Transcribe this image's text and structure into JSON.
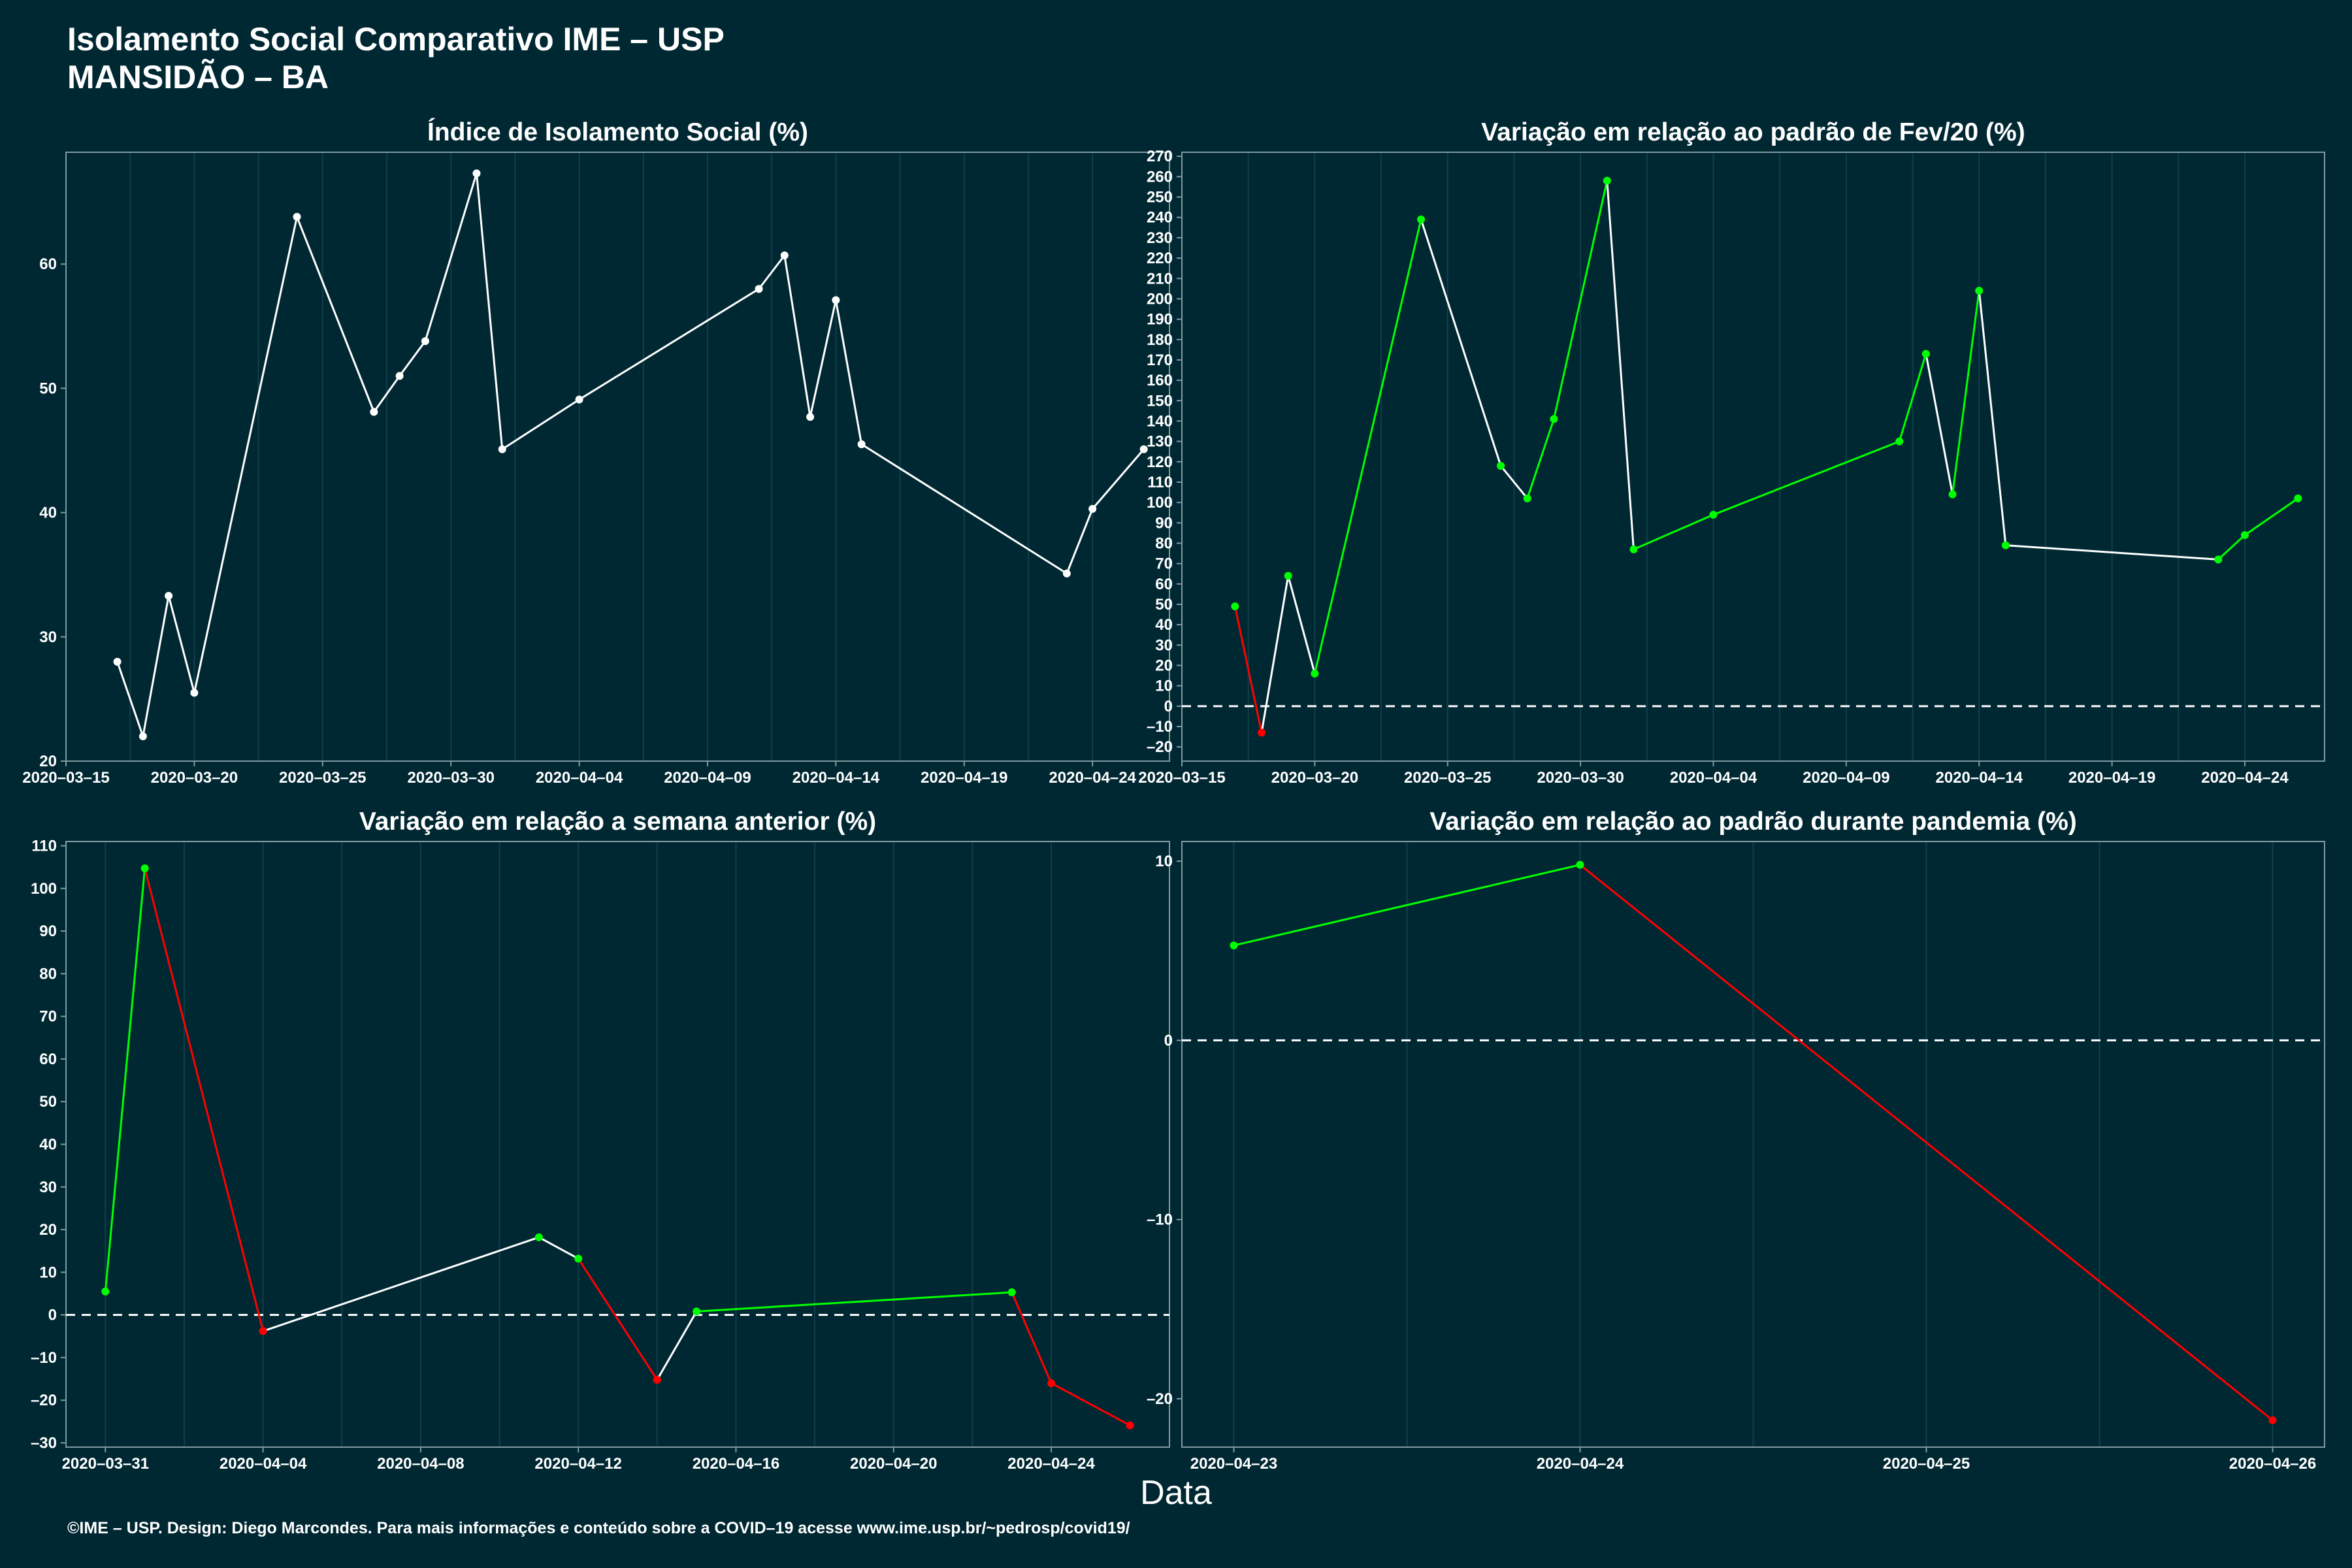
{
  "title": "Isolamento Social Comparativo IME – USP",
  "subtitle": "MANSIDÃO – BA",
  "xlabel": "Data",
  "caption": "©IME – USP. Design: Diego Marcondes. Para mais informações e conteúdo sobre a COVID–19 acesse www.ime.usp.br/~pedrosp/covid19/",
  "colors": {
    "background": "#002833",
    "line": "#ffffff",
    "increase": "#00ff00",
    "decrease": "#ff0000",
    "grid": "#0f3f4a",
    "zero_line": "#ffffff"
  },
  "chart_data": [
    {
      "type": "line",
      "title": "Índice de Isolamento Social (%)",
      "x_ticks": [
        "2020–03–15",
        "2020–03–20",
        "2020–03–25",
        "2020–03–30",
        "2020–04–04",
        "2020–04–09",
        "2020–04–14",
        "2020–04–19",
        "2020–04–24"
      ],
      "xlim": [
        "2020-03-15",
        "2020-04-27"
      ],
      "ylim": [
        20,
        69
      ],
      "y_ticks": [
        20,
        30,
        40,
        50,
        60
      ],
      "zero_line": false,
      "colored_segments": false,
      "points": [
        [
          "2020-03-17",
          28.0
        ],
        [
          "2020-03-18",
          22.0
        ],
        [
          "2020-03-19",
          33.3
        ],
        [
          "2020-03-20",
          25.5
        ],
        [
          "2020-03-24",
          63.8
        ],
        [
          "2020-03-27",
          48.1
        ],
        [
          "2020-03-28",
          51.0
        ],
        [
          "2020-03-29",
          53.8
        ],
        [
          "2020-03-31",
          67.3
        ],
        [
          "2020-04-01",
          45.1
        ],
        [
          "2020-04-04",
          49.1
        ],
        [
          "2020-04-11",
          58.0
        ],
        [
          "2020-04-12",
          60.7
        ],
        [
          "2020-04-13",
          47.7
        ],
        [
          "2020-04-14",
          57.1
        ],
        [
          "2020-04-15",
          45.5
        ],
        [
          "2020-04-23",
          35.1
        ],
        [
          "2020-04-24",
          40.3
        ],
        [
          "2020-04-26",
          45.1
        ]
      ]
    },
    {
      "type": "line",
      "title": "Variação em relação ao padrão de Fev/20 (%)",
      "x_ticks": [
        "2020–03–15",
        "2020–03–20",
        "2020–03–25",
        "2020–03–30",
        "2020–04–04",
        "2020–04–09",
        "2020–04–14",
        "2020–04–19",
        "2020–04–24"
      ],
      "xlim": [
        "2020-03-15",
        "2020-04-27"
      ],
      "ylim": [
        -27,
        272
      ],
      "y_ticks": [
        -20,
        -10,
        0,
        10,
        20,
        30,
        40,
        50,
        60,
        70,
        80,
        90,
        100,
        110,
        120,
        130,
        140,
        150,
        160,
        170,
        180,
        190,
        200,
        210,
        220,
        230,
        240,
        250,
        260,
        270
      ],
      "zero_line": true,
      "colored_segments": true,
      "points": [
        [
          "2020-03-17",
          49
        ],
        [
          "2020-03-18",
          -13
        ],
        [
          "2020-03-19",
          64
        ],
        [
          "2020-03-20",
          16
        ],
        [
          "2020-03-24",
          239
        ],
        [
          "2020-03-27",
          118
        ],
        [
          "2020-03-28",
          102
        ],
        [
          "2020-03-29",
          141
        ],
        [
          "2020-03-31",
          258
        ],
        [
          "2020-04-01",
          77
        ],
        [
          "2020-04-04",
          94
        ],
        [
          "2020-04-11",
          130
        ],
        [
          "2020-04-12",
          173
        ],
        [
          "2020-04-13",
          104
        ],
        [
          "2020-04-14",
          204
        ],
        [
          "2020-04-15",
          79
        ],
        [
          "2020-04-23",
          72
        ],
        [
          "2020-04-24",
          84
        ],
        [
          "2020-04-26",
          102
        ]
      ]
    },
    {
      "type": "line",
      "title": "Variação em relação a semana anterior (%)",
      "x_ticks": [
        "2020–03–31",
        "2020–04–04",
        "2020–04–08",
        "2020–04–12",
        "2020–04–16",
        "2020–04–20",
        "2020–04–24"
      ],
      "xlim": [
        "2020-03-30",
        "2020-04-27"
      ],
      "ylim": [
        -31,
        111
      ],
      "y_ticks": [
        -30,
        -20,
        -10,
        0,
        10,
        20,
        30,
        40,
        50,
        60,
        70,
        80,
        90,
        100,
        110
      ],
      "zero_line": true,
      "colored_segments": true,
      "points": [
        [
          "2020-03-31",
          5.5
        ],
        [
          "2020-04-01",
          104.7
        ],
        [
          "2020-04-04",
          -3.8
        ],
        [
          "2020-04-11",
          18.2
        ],
        [
          "2020-04-12",
          13.2
        ],
        [
          "2020-04-14",
          -15.2
        ],
        [
          "2020-04-15",
          0.8
        ],
        [
          "2020-04-23",
          5.3
        ],
        [
          "2020-04-24",
          -16.0
        ],
        [
          "2020-04-26",
          -25.9
        ]
      ]
    },
    {
      "type": "line",
      "title": "Variação em relação ao padrão durante pandemia (%)",
      "x_ticks": [
        "2020–04–23",
        "2020–04–24",
        "2020–04–25",
        "2020–04–26"
      ],
      "xlim": [
        "2020-04-22.85",
        "2020-04-26.15"
      ],
      "ylim": [
        -22.7,
        11.1
      ],
      "y_ticks": [
        -20,
        -10,
        0,
        10
      ],
      "zero_line": true,
      "colored_segments": true,
      "points": [
        [
          "2020-04-23",
          5.3
        ],
        [
          "2020-04-24",
          9.8
        ],
        [
          "2020-04-26",
          -21.2
        ]
      ]
    }
  ]
}
